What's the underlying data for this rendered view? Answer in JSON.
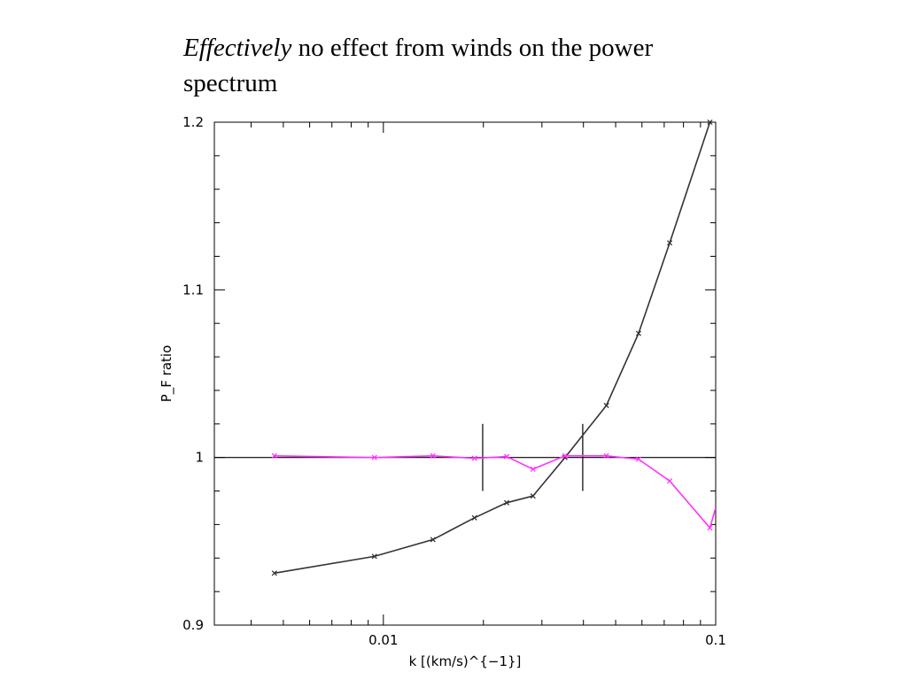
{
  "slide": {
    "title_emphasis": "Effectively",
    "title_rest": " no effect from winds on the power",
    "title_line2": "spectrum"
  },
  "chart_data": {
    "type": "line",
    "xlabel": "k [(km/s)^{−1}]",
    "ylabel": "P_F ratio",
    "xscale": "log",
    "xlim": [
      0.0031,
      0.1
    ],
    "ylim": [
      0.9,
      1.2
    ],
    "xticks": [
      {
        "value": 0.01,
        "label": "0.01"
      },
      {
        "value": 0.1,
        "label": "0.1"
      }
    ],
    "yticks": [
      {
        "value": 0.9,
        "label": "0.9"
      },
      {
        "value": 1.0,
        "label": "1"
      },
      {
        "value": 1.1,
        "label": "1.1"
      },
      {
        "value": 1.2,
        "label": "1.2"
      }
    ],
    "reference_line": {
      "y": 1.0,
      "color": "#000000"
    },
    "vertical_markers": [
      {
        "x": 0.0199,
        "y_range": [
          0.98,
          1.02
        ]
      },
      {
        "x": 0.0398,
        "y_range": [
          0.98,
          1.02
        ]
      }
    ],
    "grid": false,
    "series": [
      {
        "color": "#333333",
        "marker": "x",
        "x": [
          0.0047,
          0.0094,
          0.0141,
          0.0188,
          0.0235,
          0.0282,
          0.0352,
          0.0469,
          0.0586,
          0.0727,
          0.0961
        ],
        "y": [
          0.931,
          0.941,
          0.951,
          0.964,
          0.973,
          0.977,
          1.0,
          1.031,
          1.074,
          1.128,
          1.2
        ]
      },
      {
        "color": "#ff33ff",
        "marker": "x",
        "x": [
          0.0047,
          0.0094,
          0.0141,
          0.0188,
          0.0235,
          0.0282,
          0.0352,
          0.0469,
          0.0586,
          0.0727,
          0.0961,
          0.1
        ],
        "y": [
          1.001,
          1.0,
          1.001,
          0.9995,
          1.0005,
          0.993,
          1.001,
          1.001,
          0.999,
          0.986,
          0.958,
          0.97
        ]
      }
    ]
  }
}
